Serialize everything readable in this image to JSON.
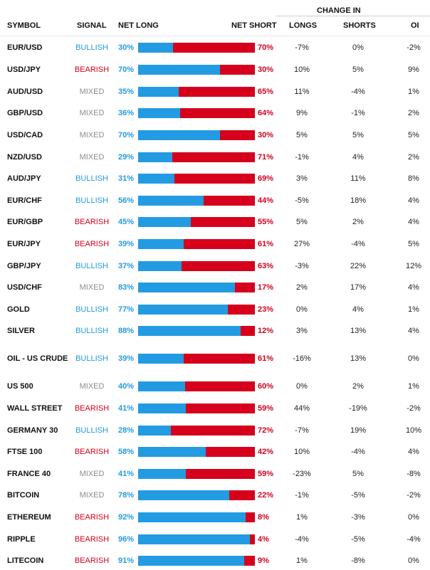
{
  "headers": {
    "symbol": "SYMBOL",
    "signal": "SIGNAL",
    "net_long": "NET LONG",
    "net_short": "NET SHORT",
    "change_in": "CHANGE IN",
    "longs": "LONGS",
    "shorts": "SHORTS",
    "oi": "OI"
  },
  "colors": {
    "long": "#239be2",
    "short": "#d6001c",
    "bullish": "#239be2",
    "bearish": "#d6001c",
    "mixed": "#8c8c8c"
  },
  "rows": [
    {
      "symbol": "EUR/USD",
      "signal": "BULLISH",
      "net_long": "30%",
      "net_long_value": 30,
      "net_short": "70%",
      "longs": "-7%",
      "shorts": "0%",
      "oi": "-2%"
    },
    {
      "symbol": "USD/JPY",
      "signal": "BEARISH",
      "net_long": "70%",
      "net_long_value": 70,
      "net_short": "30%",
      "longs": "10%",
      "shorts": "5%",
      "oi": "9%"
    },
    {
      "symbol": "AUD/USD",
      "signal": "MIXED",
      "net_long": "35%",
      "net_long_value": 35,
      "net_short": "65%",
      "longs": "11%",
      "shorts": "-4%",
      "oi": "1%"
    },
    {
      "symbol": "GBP/USD",
      "signal": "MIXED",
      "net_long": "36%",
      "net_long_value": 36,
      "net_short": "64%",
      "longs": "9%",
      "shorts": "-1%",
      "oi": "2%"
    },
    {
      "symbol": "USD/CAD",
      "signal": "MIXED",
      "net_long": "70%",
      "net_long_value": 70,
      "net_short": "30%",
      "longs": "5%",
      "shorts": "5%",
      "oi": "5%"
    },
    {
      "symbol": "NZD/USD",
      "signal": "MIXED",
      "net_long": "29%",
      "net_long_value": 29,
      "net_short": "71%",
      "longs": "-1%",
      "shorts": "4%",
      "oi": "2%"
    },
    {
      "symbol": "AUD/JPY",
      "signal": "BULLISH",
      "net_long": "31%",
      "net_long_value": 31,
      "net_short": "69%",
      "longs": "3%",
      "shorts": "11%",
      "oi": "8%"
    },
    {
      "symbol": "EUR/CHF",
      "signal": "BULLISH",
      "net_long": "56%",
      "net_long_value": 56,
      "net_short": "44%",
      "longs": "-5%",
      "shorts": "18%",
      "oi": "4%"
    },
    {
      "symbol": "EUR/GBP",
      "signal": "BEARISH",
      "net_long": "45%",
      "net_long_value": 45,
      "net_short": "55%",
      "longs": "5%",
      "shorts": "2%",
      "oi": "4%"
    },
    {
      "symbol": "EUR/JPY",
      "signal": "BEARISH",
      "net_long": "39%",
      "net_long_value": 39,
      "net_short": "61%",
      "longs": "27%",
      "shorts": "-4%",
      "oi": "5%"
    },
    {
      "symbol": "GBP/JPY",
      "signal": "BULLISH",
      "net_long": "37%",
      "net_long_value": 37,
      "net_short": "63%",
      "longs": "-3%",
      "shorts": "22%",
      "oi": "12%"
    },
    {
      "symbol": "USD/CHF",
      "signal": "MIXED",
      "net_long": "83%",
      "net_long_value": 83,
      "net_short": "17%",
      "longs": "2%",
      "shorts": "17%",
      "oi": "4%"
    },
    {
      "symbol": "GOLD",
      "signal": "BULLISH",
      "net_long": "77%",
      "net_long_value": 77,
      "net_short": "23%",
      "longs": "0%",
      "shorts": "4%",
      "oi": "1%"
    },
    {
      "symbol": "SILVER",
      "signal": "BULLISH",
      "net_long": "88%",
      "net_long_value": 88,
      "net_short": "12%",
      "longs": "3%",
      "shorts": "13%",
      "oi": "4%"
    },
    {
      "symbol": "OIL - US CRUDE",
      "signal": "BULLISH",
      "net_long": "39%",
      "net_long_value": 39,
      "net_short": "61%",
      "longs": "-16%",
      "shorts": "13%",
      "oi": "0%"
    },
    {
      "symbol": "US 500",
      "signal": "MIXED",
      "net_long": "40%",
      "net_long_value": 40,
      "net_short": "60%",
      "longs": "0%",
      "shorts": "2%",
      "oi": "1%"
    },
    {
      "symbol": "WALL STREET",
      "signal": "BEARISH",
      "net_long": "41%",
      "net_long_value": 41,
      "net_short": "59%",
      "longs": "44%",
      "shorts": "-19%",
      "oi": "-2%"
    },
    {
      "symbol": "GERMANY 30",
      "signal": "BULLISH",
      "net_long": "28%",
      "net_long_value": 28,
      "net_short": "72%",
      "longs": "-7%",
      "shorts": "19%",
      "oi": "10%"
    },
    {
      "symbol": "FTSE 100",
      "signal": "BEARISH",
      "net_long": "58%",
      "net_long_value": 58,
      "net_short": "42%",
      "longs": "10%",
      "shorts": "-4%",
      "oi": "4%"
    },
    {
      "symbol": "FRANCE 40",
      "signal": "MIXED",
      "net_long": "41%",
      "net_long_value": 41,
      "net_short": "59%",
      "longs": "-23%",
      "shorts": "5%",
      "oi": "-8%"
    },
    {
      "symbol": "BITCOIN",
      "signal": "MIXED",
      "net_long": "78%",
      "net_long_value": 78,
      "net_short": "22%",
      "longs": "-1%",
      "shorts": "-5%",
      "oi": "-2%"
    },
    {
      "symbol": "ETHEREUM",
      "signal": "BEARISH",
      "net_long": "92%",
      "net_long_value": 92,
      "net_short": "8%",
      "longs": "1%",
      "shorts": "-3%",
      "oi": "0%"
    },
    {
      "symbol": "RIPPLE",
      "signal": "BEARISH",
      "net_long": "96%",
      "net_long_value": 96,
      "net_short": "4%",
      "longs": "-4%",
      "shorts": "-5%",
      "oi": "-4%"
    },
    {
      "symbol": "LITECOIN",
      "signal": "BEARISH",
      "net_long": "91%",
      "net_long_value": 91,
      "net_short": "9%",
      "longs": "1%",
      "shorts": "-8%",
      "oi": "0%"
    }
  ]
}
